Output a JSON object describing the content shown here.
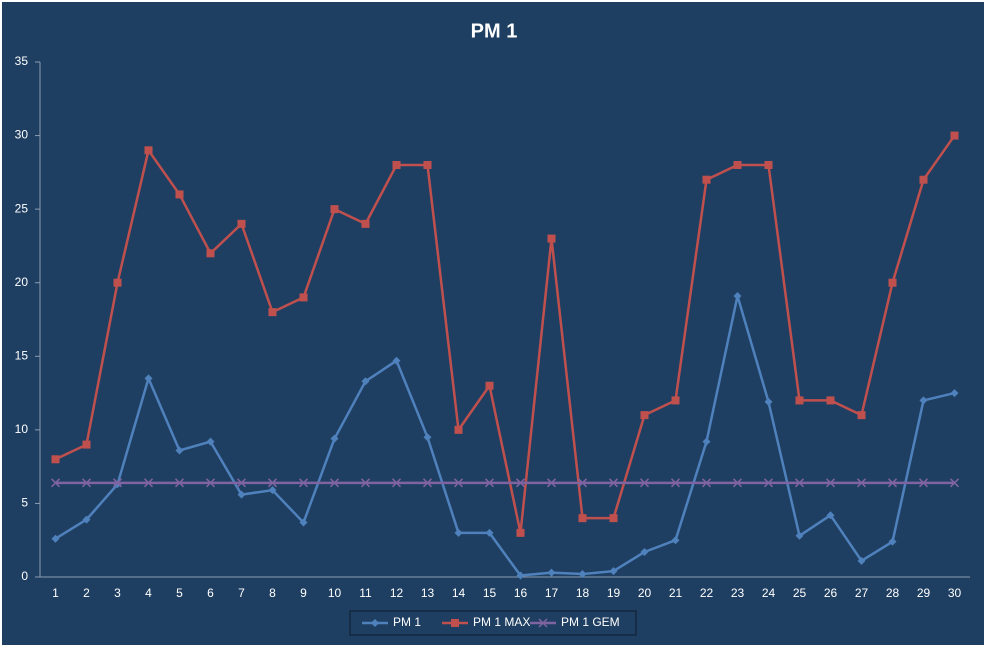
{
  "chart_data": {
    "type": "line",
    "title": "PM 1",
    "categories": [
      "1",
      "2",
      "3",
      "4",
      "5",
      "6",
      "7",
      "8",
      "9",
      "10",
      "11",
      "12",
      "13",
      "14",
      "15",
      "16",
      "17",
      "18",
      "19",
      "20",
      "21",
      "22",
      "23",
      "24",
      "25",
      "26",
      "27",
      "28",
      "29",
      "30"
    ],
    "series": [
      {
        "name": "PM 1",
        "color": "#4f81bd",
        "marker": "diamond",
        "values": [
          2.6,
          3.9,
          6.3,
          13.5,
          8.6,
          9.2,
          5.6,
          5.9,
          3.7,
          9.4,
          13.3,
          14.7,
          9.5,
          3.0,
          3.0,
          0.1,
          0.3,
          0.2,
          0.4,
          1.7,
          2.5,
          9.2,
          19.1,
          11.9,
          2.8,
          4.2,
          1.1,
          2.4,
          12.0,
          12.5
        ]
      },
      {
        "name": "PM 1 MAX",
        "color": "#c0504d",
        "marker": "square",
        "values": [
          8,
          9,
          20,
          29,
          26,
          22,
          24,
          18,
          19,
          25,
          24,
          28,
          28,
          10,
          13,
          3,
          23,
          4,
          4,
          11,
          12,
          27,
          28,
          28,
          12,
          12,
          11,
          20,
          27,
          30
        ]
      },
      {
        "name": "PM 1 GEM",
        "color": "#8064a2",
        "marker": "x",
        "values": [
          6.4,
          6.4,
          6.4,
          6.4,
          6.4,
          6.4,
          6.4,
          6.4,
          6.4,
          6.4,
          6.4,
          6.4,
          6.4,
          6.4,
          6.4,
          6.4,
          6.4,
          6.4,
          6.4,
          6.4,
          6.4,
          6.4,
          6.4,
          6.4,
          6.4,
          6.4,
          6.4,
          6.4,
          6.4,
          6.4
        ]
      }
    ],
    "ylim": [
      0,
      35
    ],
    "yticks": [
      0,
      5,
      10,
      15,
      20,
      25,
      30,
      35
    ],
    "grid": false,
    "legend": "bottom"
  }
}
